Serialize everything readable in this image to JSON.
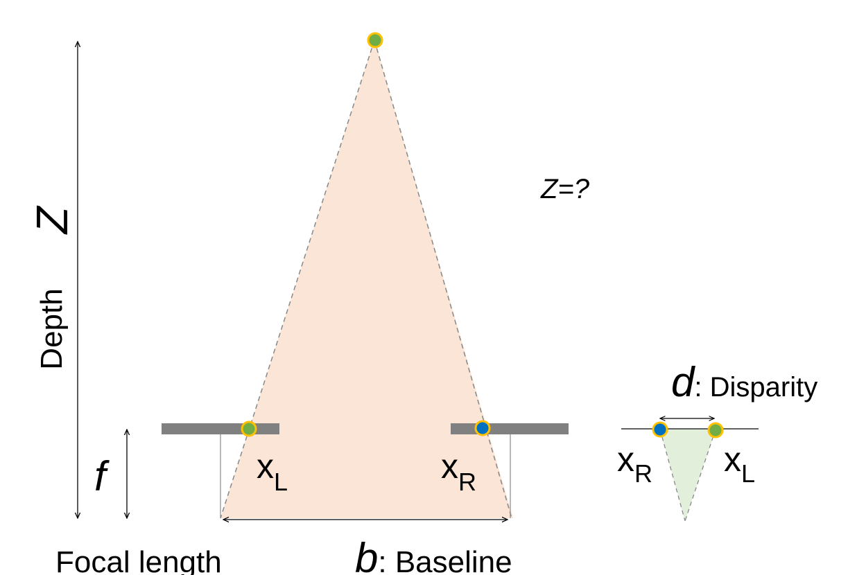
{
  "labels": {
    "depth_symbol": "Z",
    "depth_word": "Depth",
    "query": "Z=?",
    "focal_symbol": "f",
    "focal_word": "Focal length",
    "left_point_main": "x",
    "left_point_sub": "L",
    "right_point_main": "x",
    "right_point_sub": "R",
    "baseline_symbol": "b",
    "baseline_word": ": Baseline",
    "disparity_symbol": "d",
    "disparity_word": ": Disparity",
    "inset_left_main": "x",
    "inset_left_sub": "R",
    "inset_right_main": "x",
    "inset_right_sub": "L"
  },
  "colors": {
    "triangle_fill": "#fbe5d6",
    "inset_fill": "#e2efda",
    "sensor": "#808080",
    "point_green": "#70ad47",
    "point_blue": "#0070c0",
    "point_outline": "#ffc000"
  }
}
